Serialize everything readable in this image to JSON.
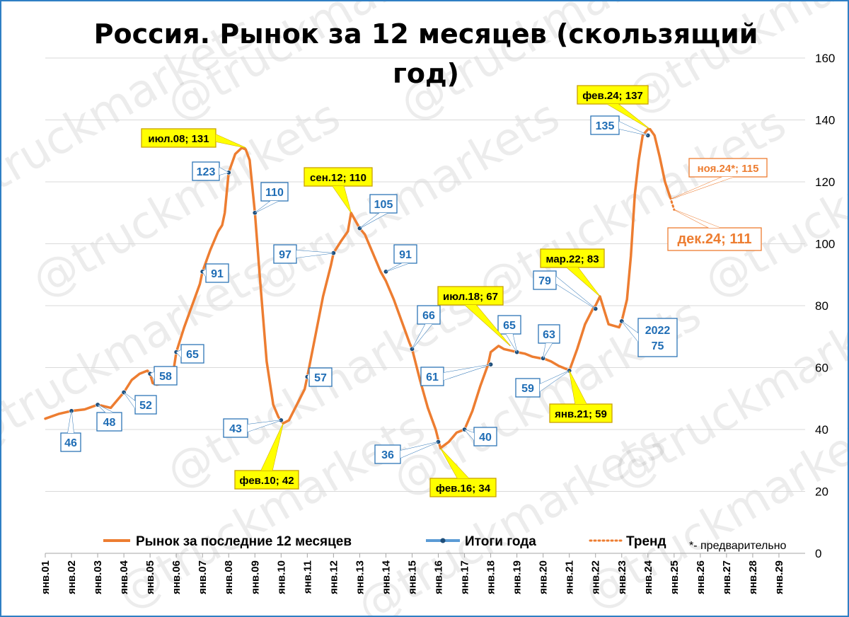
{
  "chart_data": {
    "type": "line",
    "title": "Россия. Рынок за 12 месяцев (скользящий год)",
    "xlabel": "",
    "ylabel": "",
    "ylim": [
      0,
      160
    ],
    "y_ticks": [
      0,
      20,
      40,
      60,
      80,
      100,
      120,
      140,
      160
    ],
    "y_axis_position": "right",
    "grid": {
      "horizontal": true,
      "vertical": false
    },
    "legend_position": "bottom",
    "x_ticks": [
      "янв.01",
      "янв.02",
      "янв.03",
      "янв.04",
      "янв.05",
      "янв.06",
      "янв.07",
      "янв.08",
      "янв.09",
      "янв.10",
      "янв.11",
      "янв.12",
      "янв.13",
      "янв.14",
      "янв.15",
      "янв.16",
      "янв.17",
      "янв.18",
      "янв.19",
      "янв.20",
      "янв.21",
      "янв.22",
      "янв.23",
      "янв.24",
      "янв.25",
      "янв.26",
      "янв.27",
      "янв.28",
      "янв.29"
    ],
    "x_range": [
      2001.0,
      2030.0
    ],
    "series": [
      {
        "name": "Рынок за последние 12 месяцев",
        "color": "#ed7d31",
        "style": "solid",
        "x": [
          2001.0,
          2001.5,
          2002.0,
          2002.5,
          2003.0,
          2003.5,
          2004.0,
          2004.3,
          2004.6,
          2004.9,
          2005.0,
          2005.1,
          2005.25,
          2005.6,
          2005.85,
          2006.0,
          2006.3,
          2006.6,
          2006.9,
          2007.0,
          2007.3,
          2007.6,
          2007.75,
          2007.85,
          2008.0,
          2008.25,
          2008.5,
          2008.65,
          2008.8,
          2009.0,
          2009.2,
          2009.45,
          2009.7,
          2009.9,
          2010.08,
          2010.3,
          2010.6,
          2010.9,
          2011.0,
          2011.3,
          2011.6,
          2011.9,
          2012.0,
          2012.3,
          2012.55,
          2012.67,
          2012.8,
          2013.0,
          2013.2,
          2013.5,
          2013.8,
          2014.0,
          2014.3,
          2014.6,
          2014.9,
          2015.0,
          2015.3,
          2015.6,
          2015.9,
          2016.08,
          2016.4,
          2016.7,
          2017.0,
          2017.3,
          2017.6,
          2017.9,
          2018.0,
          2018.3,
          2018.5,
          2018.75,
          2019.0,
          2019.3,
          2019.6,
          2019.9,
          2020.0,
          2020.3,
          2020.6,
          2020.9,
          2021.0,
          2021.3,
          2021.6,
          2021.9,
          2022.0,
          2022.17,
          2022.35,
          2022.5,
          2022.7,
          2022.9,
          2023.0,
          2023.2,
          2023.35,
          2023.5,
          2023.65,
          2023.8,
          2024.0,
          2024.08,
          2024.25,
          2024.45,
          2024.65,
          2024.85
        ],
        "y": [
          43.5,
          45,
          46,
          46.5,
          48,
          47,
          52,
          56,
          58,
          59,
          58,
          55,
          54.5,
          55,
          56.5,
          65,
          73,
          80,
          87,
          91,
          98,
          104,
          106,
          110,
          123,
          129,
          131,
          130.5,
          127,
          110,
          88,
          62,
          48,
          44,
          42,
          43,
          48,
          53,
          57,
          70,
          83,
          93,
          97,
          101,
          104,
          110,
          108,
          105,
          103,
          97,
          91,
          88,
          82,
          75,
          68,
          66,
          56,
          47,
          40,
          34,
          36,
          39,
          40,
          46,
          54,
          61,
          65,
          67,
          66,
          65.5,
          65,
          64.5,
          63.5,
          63,
          63,
          62,
          60.5,
          59.5,
          59,
          66,
          74,
          79,
          80,
          83,
          78,
          74,
          73.5,
          73,
          75,
          82,
          96,
          116,
          127,
          135,
          137,
          137,
          135,
          128,
          120,
          115
        ]
      },
      {
        "name": "Итоги года",
        "color": "#2e75b6",
        "style": "points",
        "x": [
          2002,
          2003,
          2004,
          2005,
          2006,
          2007,
          2008,
          2009,
          2010,
          2011,
          2012,
          2013,
          2014,
          2015,
          2016,
          2017,
          2018,
          2019,
          2020,
          2021,
          2022,
          2023,
          2024
        ],
        "y": [
          46,
          48,
          52,
          58,
          65,
          91,
          123,
          110,
          43,
          57,
          97,
          105,
          91,
          66,
          36,
          40,
          61,
          65,
          63,
          59,
          79,
          75,
          135
        ]
      },
      {
        "name": "Тренд",
        "color": "#ed7d31",
        "style": "dotted",
        "x": [
          2024.85,
          2025.0
        ],
        "y": [
          115,
          111
        ]
      }
    ],
    "annotations": {
      "year_labels": [
        "46",
        "48",
        "52",
        "58",
        "65",
        "91",
        "123",
        "110",
        "43",
        "57",
        "97",
        "105",
        "91",
        "66",
        "36",
        "40",
        "61",
        "65",
        "63",
        "59",
        "79",
        "75",
        "135"
      ],
      "year_2022_label": [
        "2022",
        "75"
      ],
      "callouts": [
        "июл.08; 131",
        "фев.10; 42",
        "сен.12; 110",
        "фев.16; 34",
        "июл.18; 67",
        "янв.21; 59",
        "мар.22; 83",
        "фев.24; 137"
      ],
      "trend_labels": [
        "ноя.24*; 115",
        "дек.24; 111"
      ],
      "note": "*- предварительно"
    },
    "watermark": "@truckmarkets"
  }
}
